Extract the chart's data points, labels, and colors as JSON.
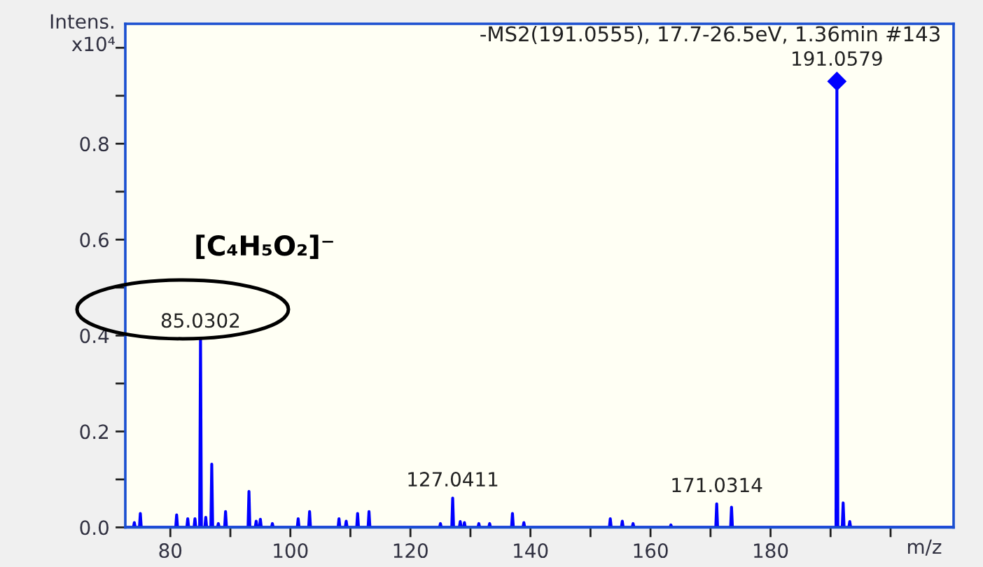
{
  "chart_data": {
    "type": "line",
    "xlabel": "m/z",
    "ylabel": "Intens.\nx10⁴",
    "annotations": [
      "-MS2(191.0555), 17.7-26.5eV, 1.36min #143",
      "[C₄H₅O₂]⁻",
      {
        "text": "85.0302",
        "x": 85.0302,
        "y": 0.392
      },
      {
        "text": "127.0411",
        "x": 127.0411,
        "y": 0.061
      },
      {
        "text": "171.0314",
        "x": 171.0314,
        "y": 0.049
      },
      {
        "text": "191.0579",
        "x": 191.0579,
        "y": 0.92
      }
    ],
    "xlim": [
      72.5,
      210.5
    ],
    "ylim": [
      0,
      1.05
    ],
    "xticks": [
      80,
      {
        "value": 90,
        "label": null
      },
      100,
      {
        "value": 110,
        "label": null
      },
      120,
      {
        "value": 130,
        "label": null
      },
      140,
      {
        "value": 150,
        "label": null
      },
      160,
      {
        "value": 170,
        "label": null
      },
      180,
      {
        "value": 190,
        "label": null
      },
      {
        "value": 200,
        "label": null
      }
    ],
    "yticks": [
      {
        "value": 0,
        "label": "0.0"
      },
      {
        "value": 0.1,
        "label": null
      },
      0.2,
      {
        "value": 0.3,
        "label": null
      },
      0.4,
      {
        "value": 0.5,
        "label": null
      },
      0.6,
      {
        "value": 0.7,
        "label": null
      },
      0.8,
      {
        "value": 0.9,
        "label": null
      },
      {
        "value": 1.0,
        "label": null
      }
    ],
    "series": [
      {
        "color": "#0000ff",
        "x": [
          72.6,
          73.85,
          74.0,
          74.15,
          74.85,
          75.0,
          75.15,
          80.9,
          81.05,
          81.2,
          82.75,
          82.9,
          83.05,
          83.95,
          84.1,
          84.25,
          84.88,
          85.0302,
          85.18,
          85.75,
          85.9,
          86.05,
          86.75,
          86.9,
          87.05,
          87.85,
          88.0,
          88.15,
          89.05,
          89.2,
          89.35,
          92.95,
          93.1,
          93.25,
          94.15,
          94.3,
          94.45,
          94.85,
          95.0,
          95.15,
          96.85,
          97.0,
          97.15,
          101.15,
          101.3,
          101.45,
          103.05,
          103.2,
          103.35,
          107.95,
          108.1,
          108.25,
          109.15,
          109.3,
          109.45,
          111.05,
          111.2,
          111.35,
          112.95,
          113.1,
          113.25,
          124.85,
          125.0,
          125.15,
          126.89,
          127.0411,
          127.19,
          128.15,
          128.3,
          128.45,
          128.85,
          129.0,
          129.15,
          131.25,
          131.4,
          131.55,
          133.05,
          133.2,
          133.35,
          136.85,
          137.0,
          137.15,
          138.75,
          138.9,
          139.05,
          153.15,
          153.3,
          153.45,
          155.15,
          155.3,
          155.45,
          156.95,
          157.1,
          157.25,
          163.25,
          163.4,
          163.55,
          170.88,
          171.0314,
          171.18,
          173.35,
          173.5,
          173.65,
          190.91,
          191.0579,
          191.21,
          191.95,
          192.1,
          192.25,
          193.05,
          193.2,
          193.35,
          210.4
        ],
        "values": [
          0,
          0,
          0.01,
          0,
          0,
          0.029,
          0,
          0,
          0.026,
          0,
          0,
          0.018,
          0,
          0,
          0.018,
          0,
          0,
          0.392,
          0,
          0,
          0.021,
          0,
          0,
          0.132,
          0,
          0,
          0.008,
          0,
          0,
          0.033,
          0,
          0,
          0.075,
          0,
          0,
          0.013,
          0,
          0,
          0.017,
          0,
          0,
          0.008,
          0,
          0,
          0.018,
          0,
          0,
          0.033,
          0,
          0,
          0.018,
          0,
          0,
          0.013,
          0,
          0,
          0.029,
          0,
          0,
          0.033,
          0,
          0,
          0.008,
          0,
          0,
          0.061,
          0,
          0,
          0.012,
          0,
          0,
          0.01,
          0,
          0,
          0.008,
          0,
          0,
          0.008,
          0,
          0,
          0.029,
          0,
          0,
          0.01,
          0,
          0,
          0.018,
          0,
          0,
          0.013,
          0,
          0,
          0.008,
          0,
          0,
          0.005,
          0,
          0,
          0.049,
          0,
          0,
          0.042,
          0,
          0,
          0.92,
          0,
          0,
          0.051,
          0,
          0,
          0.012,
          0,
          0
        ]
      },
      {
        "type": "scatter",
        "color": "#0000ff",
        "marker": "diamond",
        "x": [
          191.0579
        ],
        "values": [
          0.93
        ]
      }
    ]
  }
}
